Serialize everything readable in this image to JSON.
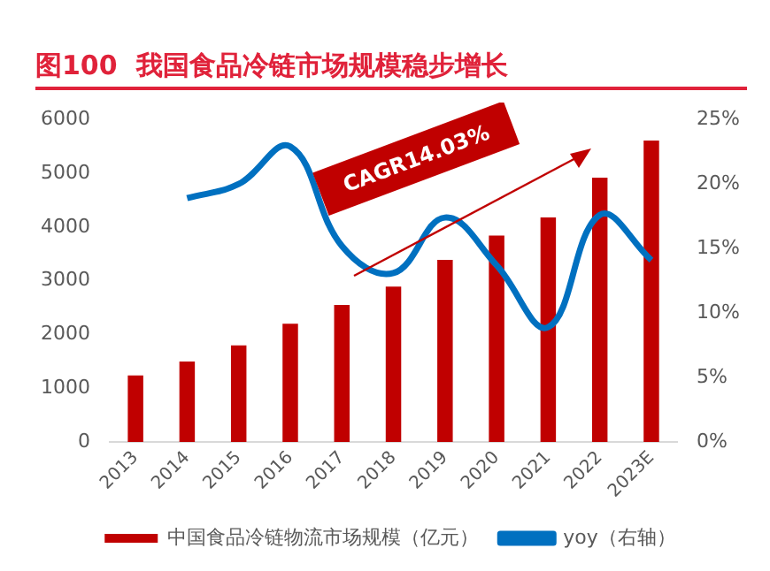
{
  "chart_data": {
    "type": "bar",
    "title": "图100  我国食品冷链市场规模稳步增长",
    "categories": [
      "2013",
      "2014",
      "2015",
      "2016",
      "2017",
      "2018",
      "2019",
      "2020",
      "2021",
      "2022",
      "2023E"
    ],
    "series": [
      {
        "name": "中国食品冷链物流市场规模（亿元）",
        "color": "#c00000",
        "values": [
          1240,
          1500,
          1800,
          2200,
          2550,
          2890,
          3390,
          3840,
          4180,
          4920,
          5610
        ]
      },
      {
        "name": "yoy（右轴）",
        "type": "line",
        "axis": "y2",
        "color": "#0070c0",
        "values": [
          null,
          18.9,
          20.0,
          22.9,
          15.2,
          13.1,
          17.4,
          13.7,
          8.9,
          17.6,
          14.1
        ]
      }
    ],
    "ylim": [
      0,
      6000
    ],
    "yticks": [
      0,
      1000,
      2000,
      3000,
      4000,
      5000,
      6000
    ],
    "y2lim": [
      0,
      25
    ],
    "y2ticks": [
      {
        "value": 0,
        "label": "0%"
      },
      {
        "value": 5,
        "label": "5%"
      },
      {
        "value": 10,
        "label": "10%"
      },
      {
        "value": 15,
        "label": "15%"
      },
      {
        "value": 20,
        "label": "20%"
      },
      {
        "value": 25,
        "label": "25%"
      }
    ],
    "annotations": [
      "CAGR14.03%"
    ],
    "grid": false,
    "legend": "bottom",
    "marker": "none",
    "line_style": "solid"
  }
}
